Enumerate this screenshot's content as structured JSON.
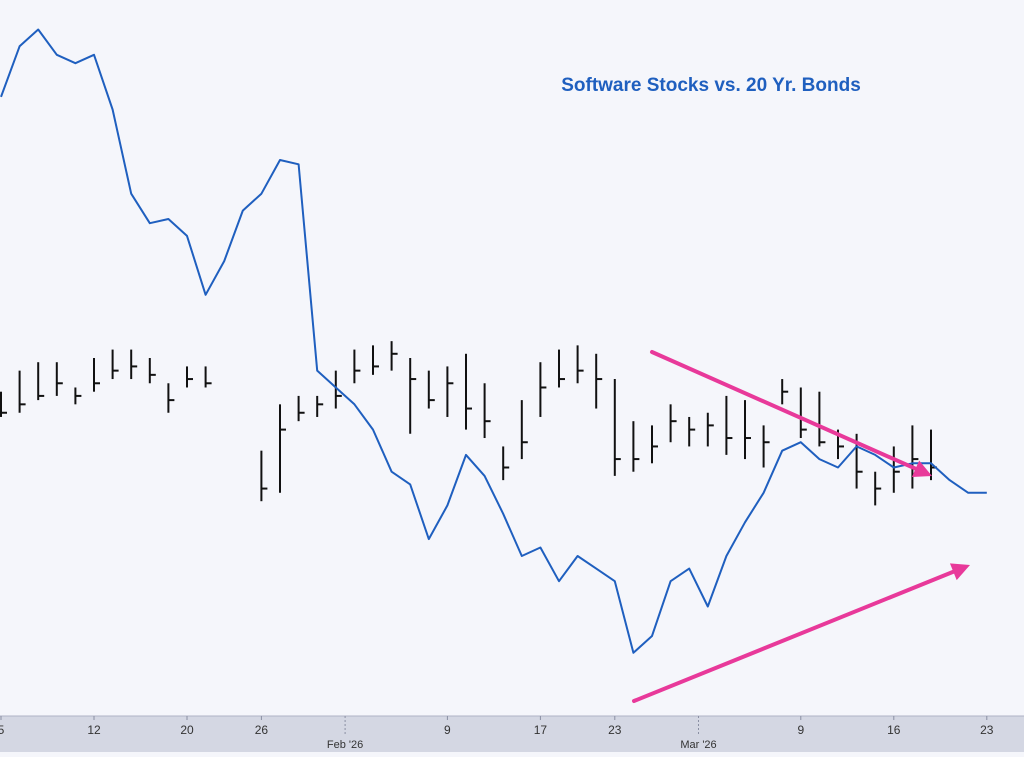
{
  "chart_data": {
    "type": "line",
    "title": "Software Stocks vs. 20 Yr. Bonds",
    "xlabel": "",
    "ylabel": "",
    "legend": "none",
    "grid": false,
    "x_tick_labels": [
      {
        "label": "5",
        "day_index": 0
      },
      {
        "label": "12",
        "day_index": 5
      },
      {
        "label": "20",
        "day_index": 10
      },
      {
        "label": "26",
        "day_index": 14
      },
      {
        "label": "9",
        "day_index": 24
      },
      {
        "label": "17",
        "day_index": 29
      },
      {
        "label": "23",
        "day_index": 33
      },
      {
        "label": "9",
        "day_index": 43
      },
      {
        "label": "16",
        "day_index": 48
      },
      {
        "label": "23",
        "day_index": 53
      }
    ],
    "month_labels": [
      {
        "label": "Feb '26",
        "day_index": 18.5
      },
      {
        "label": "Mar '26",
        "day_index": 37.5
      }
    ],
    "series": [
      {
        "color": "#1f5fbf",
        "style": "line",
        "values": [
          87,
          99,
          103,
          97,
          95,
          97,
          84,
          64,
          57,
          58,
          54,
          40,
          48,
          60,
          64,
          72,
          71,
          22,
          18,
          14,
          8,
          -2,
          -5,
          -18,
          -10,
          2,
          -3,
          -12,
          -22,
          -20,
          -28,
          -22,
          -25,
          -28,
          -45,
          -41,
          -28,
          -25,
          -34,
          -22,
          -14,
          -7,
          3,
          5,
          1,
          -1,
          4,
          2,
          -1,
          0,
          0,
          -4,
          -7,
          -7
        ]
      },
      {
        "color": "#111111",
        "style": "ohlc",
        "bars": [
          [
            17,
            11,
            12
          ],
          [
            22,
            12,
            14
          ],
          [
            24,
            15,
            16
          ],
          [
            24,
            16,
            19
          ],
          [
            18,
            14,
            16
          ],
          [
            25,
            17,
            19
          ],
          [
            27,
            20,
            22
          ],
          [
            27,
            20,
            23
          ],
          [
            25,
            19,
            21
          ],
          [
            19,
            12,
            15
          ],
          [
            23,
            18,
            20
          ],
          [
            23,
            18,
            19
          ],
          [
            null,
            null,
            null
          ],
          [
            null,
            null,
            null
          ],
          [
            3,
            -9,
            -6
          ],
          [
            14,
            -7,
            8
          ],
          [
            16,
            10,
            12
          ],
          [
            16,
            11,
            14
          ],
          [
            22,
            13,
            16
          ],
          [
            27,
            19,
            22
          ],
          [
            28,
            21,
            23
          ],
          [
            29,
            22,
            26
          ],
          [
            25,
            7,
            20
          ],
          [
            22,
            13,
            15
          ],
          [
            23,
            11,
            19
          ],
          [
            26,
            8,
            13
          ],
          [
            19,
            6,
            10
          ],
          [
            4,
            -4,
            -1
          ],
          [
            15,
            1,
            5
          ],
          [
            24,
            11,
            18
          ],
          [
            27,
            18,
            20
          ],
          [
            28,
            19,
            22
          ],
          [
            26,
            13,
            20
          ],
          [
            20,
            -3,
            1
          ],
          [
            10,
            -2,
            1
          ],
          [
            9,
            0,
            4
          ],
          [
            14,
            5,
            10
          ],
          [
            11,
            4,
            8
          ],
          [
            12,
            4,
            9
          ],
          [
            16,
            2,
            6
          ],
          [
            15,
            1,
            6
          ],
          [
            9,
            -1,
            5
          ],
          [
            20,
            14,
            17
          ],
          [
            18,
            6,
            8
          ],
          [
            17,
            4,
            5
          ],
          [
            8,
            1,
            4
          ],
          [
            7,
            -6,
            -2
          ],
          [
            -2,
            -10,
            -6
          ],
          [
            4,
            -7,
            -2
          ],
          [
            9,
            -6,
            1
          ],
          [
            8,
            -4,
            -1
          ]
        ]
      }
    ],
    "arrows": [
      {
        "color": "#e8399a",
        "direction": "down-right"
      },
      {
        "color": "#e8399a",
        "direction": "up-right"
      }
    ],
    "ylim": [
      -60,
      110
    ]
  },
  "colors": {
    "title": "#1f5fbf",
    "background": "#f5f6fb",
    "axis_band": "#d4d7e3",
    "line": "#1f5fbf",
    "bars": "#111111",
    "arrow": "#e8399a"
  }
}
